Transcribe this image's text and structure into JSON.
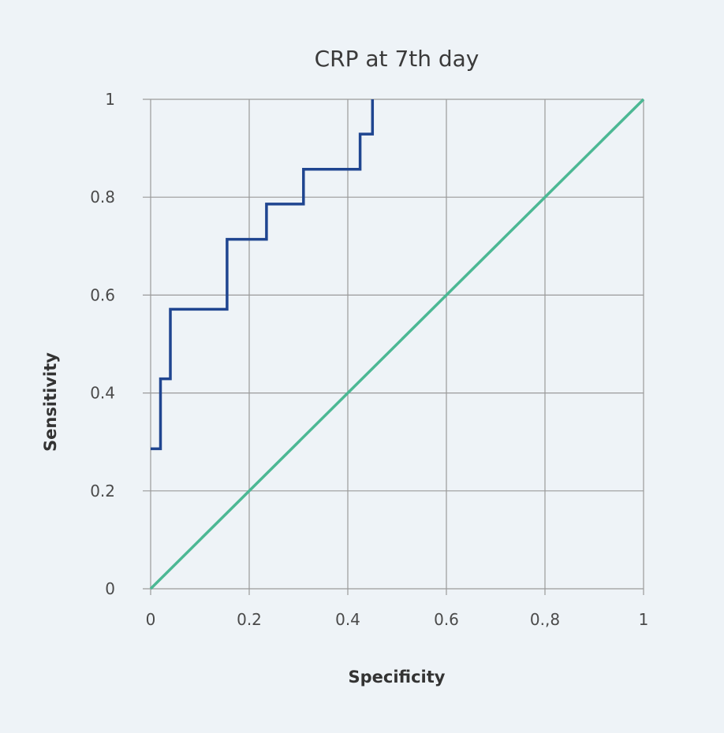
{
  "chart_data": {
    "type": "line",
    "title": "CRP at 7th day",
    "xlabel": "Specificity",
    "ylabel": "Sensitivity",
    "xlim": [
      0,
      1
    ],
    "ylim": [
      0,
      1
    ],
    "grid": true,
    "x_ticks": [
      {
        "value": 0,
        "label": "0"
      },
      {
        "value": 0.2,
        "label": "0.2"
      },
      {
        "value": 0.4,
        "label": "0.4"
      },
      {
        "value": 0.6,
        "label": "0.6"
      },
      {
        "value": 0.8,
        "label": "0.,8"
      },
      {
        "value": 1,
        "label": "1"
      }
    ],
    "y_ticks": [
      {
        "value": 0,
        "label": "0"
      },
      {
        "value": 0.2,
        "label": "0.2"
      },
      {
        "value": 0.4,
        "label": "0.4"
      },
      {
        "value": 0.6,
        "label": "0.6"
      },
      {
        "value": 0.8,
        "label": "0.8"
      },
      {
        "value": 1,
        "label": "1"
      }
    ],
    "series": [
      {
        "color": "#1f4590",
        "x": [
          0,
          0.02,
          0.02,
          0.04,
          0.04,
          0.155,
          0.155,
          0.235,
          0.235,
          0.31,
          0.31,
          0.425,
          0.425,
          0.45,
          0.45
        ],
        "y": [
          0.286,
          0.286,
          0.429,
          0.429,
          0.571,
          0.571,
          0.714,
          0.714,
          0.786,
          0.786,
          0.857,
          0.857,
          0.929,
          0.929,
          1.0
        ]
      },
      {
        "color": "#4cb894",
        "x": [
          0,
          1
        ],
        "y": [
          0,
          1
        ]
      }
    ]
  }
}
